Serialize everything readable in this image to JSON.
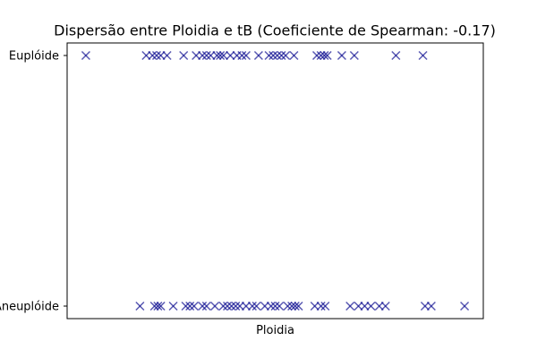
{
  "chart_data": {
    "type": "scatter",
    "title": "Dispersão entre Ploidia e tB (Coeficiente de Spearman: -0.17)",
    "xlabel": "Ploidia",
    "ylabel": "",
    "x_ticks_visible": false,
    "y_categories": [
      "Aneuplóide",
      "Euplóide"
    ],
    "marker": "x",
    "color": "#00008b",
    "xlim": [
      0,
      100
    ],
    "series": [
      {
        "name": "",
        "points": [
          {
            "category": "Euplóide",
            "x": 4.5
          },
          {
            "category": "Euplóide",
            "x": 19
          },
          {
            "category": "Euplóide",
            "x": 20.5
          },
          {
            "category": "Euplóide",
            "x": 21.5
          },
          {
            "category": "Euplóide",
            "x": 22.5
          },
          {
            "category": "Euplóide",
            "x": 24
          },
          {
            "category": "Euplóide",
            "x": 28
          },
          {
            "category": "Euplóide",
            "x": 31
          },
          {
            "category": "Euplóide",
            "x": 32.5
          },
          {
            "category": "Euplóide",
            "x": 33.5
          },
          {
            "category": "Euplóide",
            "x": 34.5
          },
          {
            "category": "Euplóide",
            "x": 36
          },
          {
            "category": "Euplóide",
            "x": 36.8
          },
          {
            "category": "Euplóide",
            "x": 37.6
          },
          {
            "category": "Euplóide",
            "x": 39.2
          },
          {
            "category": "Euplóide",
            "x": 40.8
          },
          {
            "category": "Euplóide",
            "x": 42
          },
          {
            "category": "Euplóide",
            "x": 43
          },
          {
            "category": "Euplóide",
            "x": 46
          },
          {
            "category": "Euplóide",
            "x": 48.5
          },
          {
            "category": "Euplóide",
            "x": 49.5
          },
          {
            "category": "Euplóide",
            "x": 50.5
          },
          {
            "category": "Euplóide",
            "x": 51.5
          },
          {
            "category": "Euplóide",
            "x": 52.5
          },
          {
            "category": "Euplóide",
            "x": 54.5
          },
          {
            "category": "Euplóide",
            "x": 60
          },
          {
            "category": "Euplóide",
            "x": 61
          },
          {
            "category": "Euplóide",
            "x": 61.8
          },
          {
            "category": "Euplóide",
            "x": 62.5
          },
          {
            "category": "Euplóide",
            "x": 66
          },
          {
            "category": "Euplóide",
            "x": 69
          },
          {
            "category": "Euplóide",
            "x": 79
          },
          {
            "category": "Euplóide",
            "x": 85.5
          },
          {
            "category": "Aneuplóide",
            "x": 17.5
          },
          {
            "category": "Aneuplóide",
            "x": 21
          },
          {
            "category": "Aneuplóide",
            "x": 21.8
          },
          {
            "category": "Aneuplóide",
            "x": 22.5
          },
          {
            "category": "Aneuplóide",
            "x": 25.5
          },
          {
            "category": "Aneuplóide",
            "x": 28.5
          },
          {
            "category": "Aneuplóide",
            "x": 29.5
          },
          {
            "category": "Aneuplóide",
            "x": 30.5
          },
          {
            "category": "Aneuplóide",
            "x": 32.5
          },
          {
            "category": "Aneuplóide",
            "x": 33.5
          },
          {
            "category": "Aneuplóide",
            "x": 35.5
          },
          {
            "category": "Aneuplóide",
            "x": 37.5
          },
          {
            "category": "Aneuplóide",
            "x": 38.5
          },
          {
            "category": "Aneuplóide",
            "x": 39.5
          },
          {
            "category": "Aneuplóide",
            "x": 40.5
          },
          {
            "category": "Aneuplóide",
            "x": 41.5
          },
          {
            "category": "Aneuplóide",
            "x": 43
          },
          {
            "category": "Aneuplóide",
            "x": 44.5
          },
          {
            "category": "Aneuplóide",
            "x": 45.5
          },
          {
            "category": "Aneuplóide",
            "x": 47.5
          },
          {
            "category": "Aneuplóide",
            "x": 49
          },
          {
            "category": "Aneuplóide",
            "x": 50
          },
          {
            "category": "Aneuplóide",
            "x": 51
          },
          {
            "category": "Aneuplóide",
            "x": 53
          },
          {
            "category": "Aneuplóide",
            "x": 54
          },
          {
            "category": "Aneuplóide",
            "x": 54.8
          },
          {
            "category": "Aneuplóide",
            "x": 55.6
          },
          {
            "category": "Aneuplóide",
            "x": 59.5
          },
          {
            "category": "Aneuplóide",
            "x": 61
          },
          {
            "category": "Aneuplóide",
            "x": 62
          },
          {
            "category": "Aneuplóide",
            "x": 68
          },
          {
            "category": "Aneuplóide",
            "x": 70
          },
          {
            "category": "Aneuplóide",
            "x": 71.5
          },
          {
            "category": "Aneuplóide",
            "x": 73
          },
          {
            "category": "Aneuplóide",
            "x": 75
          },
          {
            "category": "Aneuplóide",
            "x": 76.5
          },
          {
            "category": "Aneuplóide",
            "x": 86
          },
          {
            "category": "Aneuplóide",
            "x": 87.5
          },
          {
            "category": "Aneuplóide",
            "x": 95.5
          }
        ]
      }
    ],
    "grid": false,
    "legend": "none"
  }
}
